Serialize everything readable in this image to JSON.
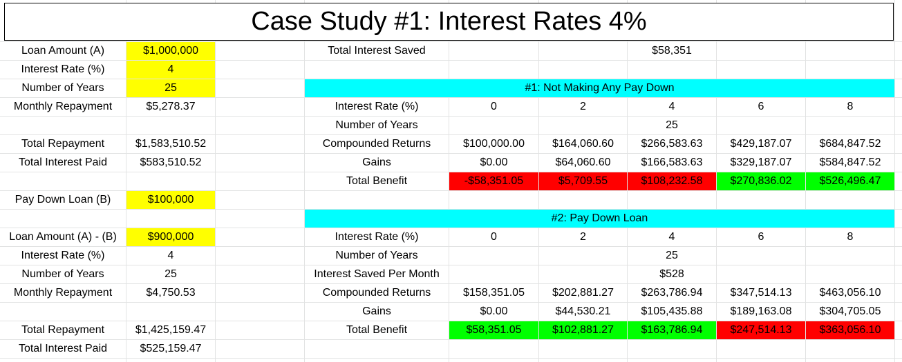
{
  "title": "Case Study #1: Interest Rates 4%",
  "left": {
    "loan_amount_label": "Loan Amount (A)",
    "loan_amount_value": "$1,000,000",
    "rate_label": "Interest Rate (%)",
    "rate_value": "4",
    "years_label": "Number of Years",
    "years_value": "25",
    "monthly_label": "Monthly Repayment",
    "monthly_value": "$5,278.37",
    "total_repay_label": "Total Repayment",
    "total_repay_value": "$1,583,510.52",
    "total_interest_label": "Total Interest Paid",
    "total_interest_value": "$583,510.52",
    "paydown_label": "Pay Down Loan (B)",
    "paydown_value": "$100,000",
    "loan2_label": "Loan Amount (A) - (B)",
    "loan2_value": "$900,000",
    "rate2_label": "Interest Rate (%)",
    "rate2_value": "4",
    "years2_label": "Number of Years",
    "years2_value": "25",
    "monthly2_label": "Monthly Repayment",
    "monthly2_value": "$4,750.53",
    "total_repay2_label": "Total Repayment",
    "total_repay2_value": "$1,425,159.47",
    "total_interest2_label": "Total Interest Paid",
    "total_interest2_value": "$525,159.47"
  },
  "summary": {
    "saved_label": "Total Interest Saved",
    "saved_value": "$58,351"
  },
  "section1": {
    "header": "#1: Not Making Any Pay Down",
    "rate_label": "Interest Rate (%)",
    "rates": [
      "0",
      "2",
      "4",
      "6",
      "8"
    ],
    "years_label": "Number of Years",
    "years_value": "25",
    "compounded_label": "Compounded Returns",
    "compounded": [
      "$100,000.00",
      "$164,060.60",
      "$266,583.63",
      "$429,187.07",
      "$684,847.52"
    ],
    "gains_label": "Gains",
    "gains": [
      "$0.00",
      "$64,060.60",
      "$166,583.63",
      "$329,187.07",
      "$584,847.52"
    ],
    "benefit_label": "Total Benefit",
    "benefit": [
      "-$58,351.05",
      "$5,709.55",
      "$108,232.58",
      "$270,836.02",
      "$526,496.47"
    ],
    "benefit_colors": [
      "#ff0000",
      "#ff0000",
      "#ff0000",
      "#00ff00",
      "#00ff00"
    ]
  },
  "section2": {
    "header": "#2: Pay Down Loan",
    "rate_label": "Interest Rate (%)",
    "rates": [
      "0",
      "2",
      "4",
      "6",
      "8"
    ],
    "years_label": "Number of Years",
    "years_value": "25",
    "saved_month_label": "Interest Saved Per Month",
    "saved_month_value": "$528",
    "compounded_label": "Compounded Returns",
    "compounded": [
      "$158,351.05",
      "$202,881.27",
      "$263,786.94",
      "$347,514.13",
      "$463,056.10"
    ],
    "gains_label": "Gains",
    "gains": [
      "$0.00",
      "$44,530.21",
      "$105,435.88",
      "$189,163.08",
      "$304,705.05"
    ],
    "benefit_label": "Total Benefit",
    "benefit": [
      "$58,351.05",
      "$102,881.27",
      "$163,786.94",
      "$247,514.13",
      "$363,056.10"
    ],
    "benefit_colors": [
      "#00ff00",
      "#00ff00",
      "#00ff00",
      "#ff0000",
      "#ff0000"
    ]
  },
  "colors": {
    "input_fill": "#ffff00",
    "banner_fill": "#00ffff",
    "negative_fill": "#ff0000",
    "positive_fill": "#00ff00",
    "gridline": "#e2e3e3"
  }
}
